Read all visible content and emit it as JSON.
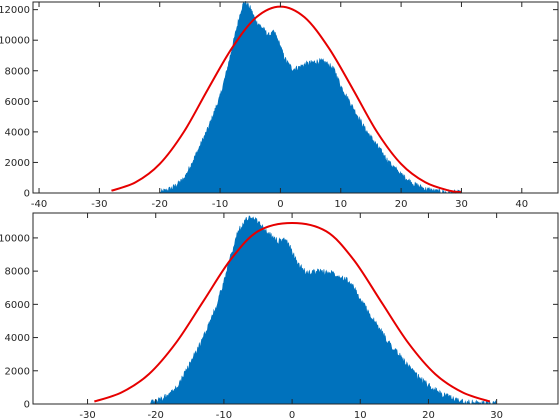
{
  "chart_data": [
    {
      "type": "bar",
      "title": "",
      "xlabel": "",
      "ylabel": "",
      "xlim": [
        -41,
        46
      ],
      "ylim": [
        0,
        12500
      ],
      "xticks": [
        -40,
        -30,
        -20,
        -10,
        0,
        10,
        20,
        30,
        40
      ],
      "xtick_labels": [
        "-40",
        "-30",
        "-20",
        "-10",
        "0",
        "10",
        "20",
        "30",
        "40"
      ],
      "yticks": [
        0,
        2000,
        4000,
        6000,
        8000,
        10000,
        12000
      ],
      "ytick_labels": [
        "0",
        "2000",
        "4000",
        "6000",
        "8000",
        "10000",
        "12000"
      ],
      "grid": false,
      "series": [
        {
          "kind": "histogram",
          "color": "#0072BD",
          "x": [
            -20,
            -18,
            -16,
            -14,
            -12,
            -10,
            -9,
            -8,
            -7,
            -6.5,
            -6,
            -5.5,
            -5,
            -4,
            -3,
            -2,
            -1,
            0,
            0.5,
            1,
            2,
            3,
            4,
            5,
            6,
            7,
            8,
            9,
            10,
            12,
            14,
            16,
            18,
            20,
            22,
            24,
            26,
            28,
            30
          ],
          "values": [
            0,
            300,
            900,
            2500,
            4200,
            6300,
            7800,
            9500,
            11200,
            12000,
            12500,
            12300,
            12100,
            11200,
            10800,
            10300,
            10500,
            9600,
            9000,
            8600,
            8100,
            8200,
            8400,
            8500,
            8600,
            8600,
            8400,
            8000,
            7000,
            5600,
            4200,
            3100,
            2000,
            1200,
            600,
            250,
            80,
            20,
            0
          ]
        },
        {
          "kind": "line",
          "color": "#E60000",
          "x": [
            -28,
            -24,
            -20,
            -16,
            -12,
            -8,
            -4,
            0,
            4,
            8,
            12,
            16,
            20,
            24,
            28,
            30
          ],
          "values": [
            150,
            700,
            1900,
            4000,
            6800,
            9500,
            11500,
            12200,
            11500,
            9500,
            6800,
            4000,
            1900,
            700,
            150,
            60
          ]
        }
      ]
    },
    {
      "type": "bar",
      "title": "",
      "xlabel": "",
      "ylabel": "",
      "xlim": [
        -38,
        39
      ],
      "ylim": [
        0,
        11500
      ],
      "xticks": [
        -30,
        -20,
        -10,
        0,
        10,
        20,
        30
      ],
      "xtick_labels": [
        "-30",
        "-20",
        "-10",
        "0",
        "10",
        "20",
        "30"
      ],
      "yticks": [
        0,
        2000,
        4000,
        6000,
        8000,
        10000
      ],
      "ytick_labels": [
        "0",
        "2000",
        "4000",
        "6000",
        "8000",
        "10000"
      ],
      "grid": false,
      "series": [
        {
          "kind": "histogram",
          "color": "#0072BD",
          "x": [
            -21,
            -19,
            -17,
            -15,
            -13,
            -11,
            -10,
            -9,
            -8,
            -7,
            -6,
            -5.5,
            -5,
            -4,
            -3,
            -2,
            -1,
            0,
            0.5,
            1,
            2,
            3,
            4,
            5,
            6,
            7,
            8,
            9,
            10,
            12,
            14,
            16,
            18,
            20,
            22,
            24,
            26,
            28,
            30
          ],
          "values": [
            0,
            300,
            900,
            2400,
            4000,
            6000,
            7400,
            8900,
            10300,
            11000,
            11300,
            11100,
            11000,
            10400,
            10100,
            9800,
            9900,
            9200,
            8700,
            8400,
            7900,
            7900,
            8000,
            7900,
            7900,
            7700,
            7500,
            7000,
            6300,
            5000,
            3800,
            2800,
            1800,
            1100,
            550,
            250,
            80,
            20,
            0
          ]
        },
        {
          "kind": "line",
          "color": "#E60000",
          "x": [
            -29,
            -25,
            -21,
            -17,
            -13,
            -9,
            -5,
            0,
            5,
            9,
            13,
            17,
            21,
            25,
            29
          ],
          "values": [
            150,
            700,
            1800,
            3700,
            6200,
            8700,
            10400,
            10900,
            10400,
            8700,
            6200,
            3700,
            1800,
            700,
            150
          ]
        }
      ]
    }
  ]
}
